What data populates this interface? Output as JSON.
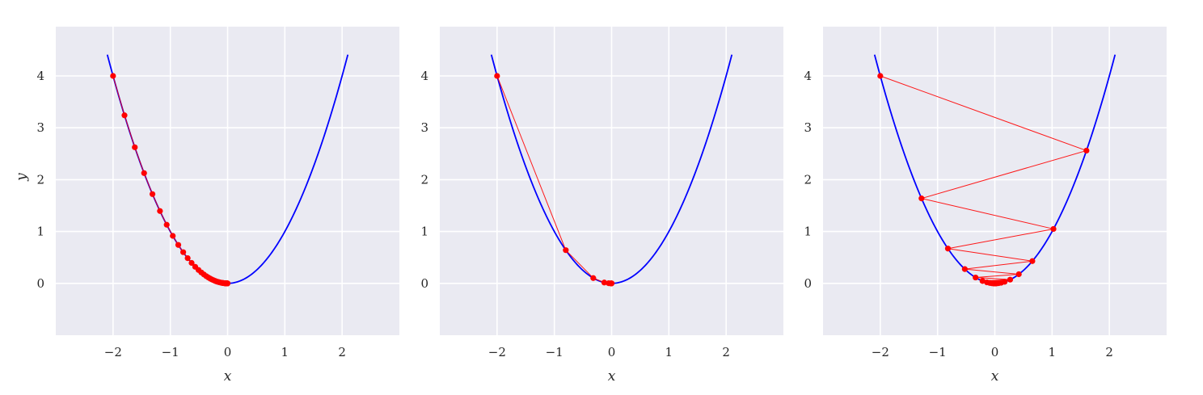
{
  "chart_data": [
    {
      "type": "line",
      "panel": "left",
      "xlabel": "x",
      "ylabel": "y",
      "xlim": [
        -3.0,
        3.0
      ],
      "ylim": [
        -1.0,
        4.95
      ],
      "xticks": [
        "−2",
        "−1",
        "0",
        "1",
        "2"
      ],
      "yticks": [
        "0",
        "1",
        "2",
        "3",
        "4"
      ],
      "grid": true,
      "series": [
        {
          "kind": "curve",
          "function": "y = x^2",
          "x_range": [
            -2.1,
            2.1
          ],
          "color": "#0000ff"
        },
        {
          "kind": "iterates",
          "color": "#ff0000",
          "x": [
            -2.0,
            -1.8,
            -1.62,
            -1.458,
            -1.312,
            -1.181,
            -1.063,
            -0.957,
            -0.861,
            -0.775,
            -0.697,
            -0.628,
            -0.565,
            -0.508,
            -0.458,
            -0.412,
            -0.371,
            -0.334,
            -0.3,
            -0.27,
            -0.243,
            -0.219,
            -0.197,
            -0.177,
            -0.16,
            -0.144,
            -0.129,
            -0.116,
            -0.105,
            -0.094,
            -0.085,
            -0.076,
            -0.069,
            -0.062,
            -0.056,
            -0.05,
            -0.045,
            -0.04,
            -0.036,
            -0.033,
            -0.03,
            -0.027,
            -0.024,
            -0.022,
            -0.02,
            -0.018,
            -0.016,
            -0.014,
            -0.013,
            -0.012,
            -0.01,
            -0.009,
            -0.008,
            -0.006,
            -0.004,
            -0.002,
            0.0
          ],
          "y": [
            4.0,
            3.24,
            2.624,
            2.126,
            1.721,
            1.395,
            1.13,
            0.916,
            0.741,
            0.601,
            0.486,
            0.394,
            0.319,
            0.258,
            0.21,
            0.17,
            0.138,
            0.112,
            0.09,
            0.073,
            0.059,
            0.048,
            0.039,
            0.031,
            0.026,
            0.021,
            0.017,
            0.013,
            0.011,
            0.009,
            0.007,
            0.006,
            0.005,
            0.004,
            0.003,
            0.003,
            0.002,
            0.002,
            0.001,
            0.001,
            0.001,
            0.001,
            0.001,
            0.0,
            0.0,
            0.0,
            0.0,
            0.0,
            0.0,
            0.0,
            0.0,
            0.0,
            0.0,
            0.0,
            0.0,
            0.0,
            0.0
          ]
        }
      ]
    },
    {
      "type": "line",
      "panel": "middle",
      "xlabel": "x",
      "ylabel": "",
      "xlim": [
        -3.0,
        3.0
      ],
      "ylim": [
        -1.0,
        4.95
      ],
      "xticks": [
        "−2",
        "−1",
        "0",
        "1",
        "2"
      ],
      "yticks": [
        "0",
        "1",
        "2",
        "3",
        "4"
      ],
      "grid": true,
      "series": [
        {
          "kind": "curve",
          "function": "y = x^2",
          "x_range": [
            -2.1,
            2.1
          ],
          "color": "#0000ff"
        },
        {
          "kind": "iterates",
          "color": "#ff0000",
          "x": [
            -2.0,
            -0.8,
            -0.32,
            -0.128,
            -0.051,
            -0.02,
            -0.008,
            -0.003,
            -0.001,
            0.0
          ],
          "y": [
            4.0,
            0.64,
            0.102,
            0.016,
            0.003,
            0.0,
            0.0,
            0.0,
            0.0,
            0.0
          ]
        }
      ]
    },
    {
      "type": "line",
      "panel": "right",
      "xlabel": "x",
      "ylabel": "",
      "xlim": [
        -3.0,
        3.0
      ],
      "ylim": [
        -1.0,
        4.95
      ],
      "xticks": [
        "−2",
        "−1",
        "0",
        "1",
        "2"
      ],
      "yticks": [
        "0",
        "1",
        "2",
        "3",
        "4"
      ],
      "grid": true,
      "series": [
        {
          "kind": "curve",
          "function": "y = x^2",
          "x_range": [
            -2.1,
            2.1
          ],
          "color": "#0000ff"
        },
        {
          "kind": "iterates",
          "color": "#ff0000",
          "x": [
            -2.0,
            1.6,
            -1.28,
            1.024,
            -0.819,
            0.655,
            -0.524,
            0.419,
            -0.336,
            0.268,
            -0.215,
            0.172,
            -0.137,
            0.11,
            -0.088,
            0.07,
            -0.056,
            0.045,
            -0.036,
            0.029,
            -0.023,
            0.018,
            -0.015,
            0.012,
            -0.01,
            0.008,
            -0.006,
            0.005,
            -0.004,
            0.003,
            0.0
          ],
          "y": [
            4.0,
            2.56,
            1.638,
            1.049,
            0.671,
            0.429,
            0.275,
            0.176,
            0.113,
            0.072,
            0.046,
            0.03,
            0.019,
            0.012,
            0.008,
            0.005,
            0.003,
            0.002,
            0.001,
            0.001,
            0.001,
            0.0,
            0.0,
            0.0,
            0.0,
            0.0,
            0.0,
            0.0,
            0.0,
            0.0,
            0.0
          ]
        }
      ]
    }
  ]
}
